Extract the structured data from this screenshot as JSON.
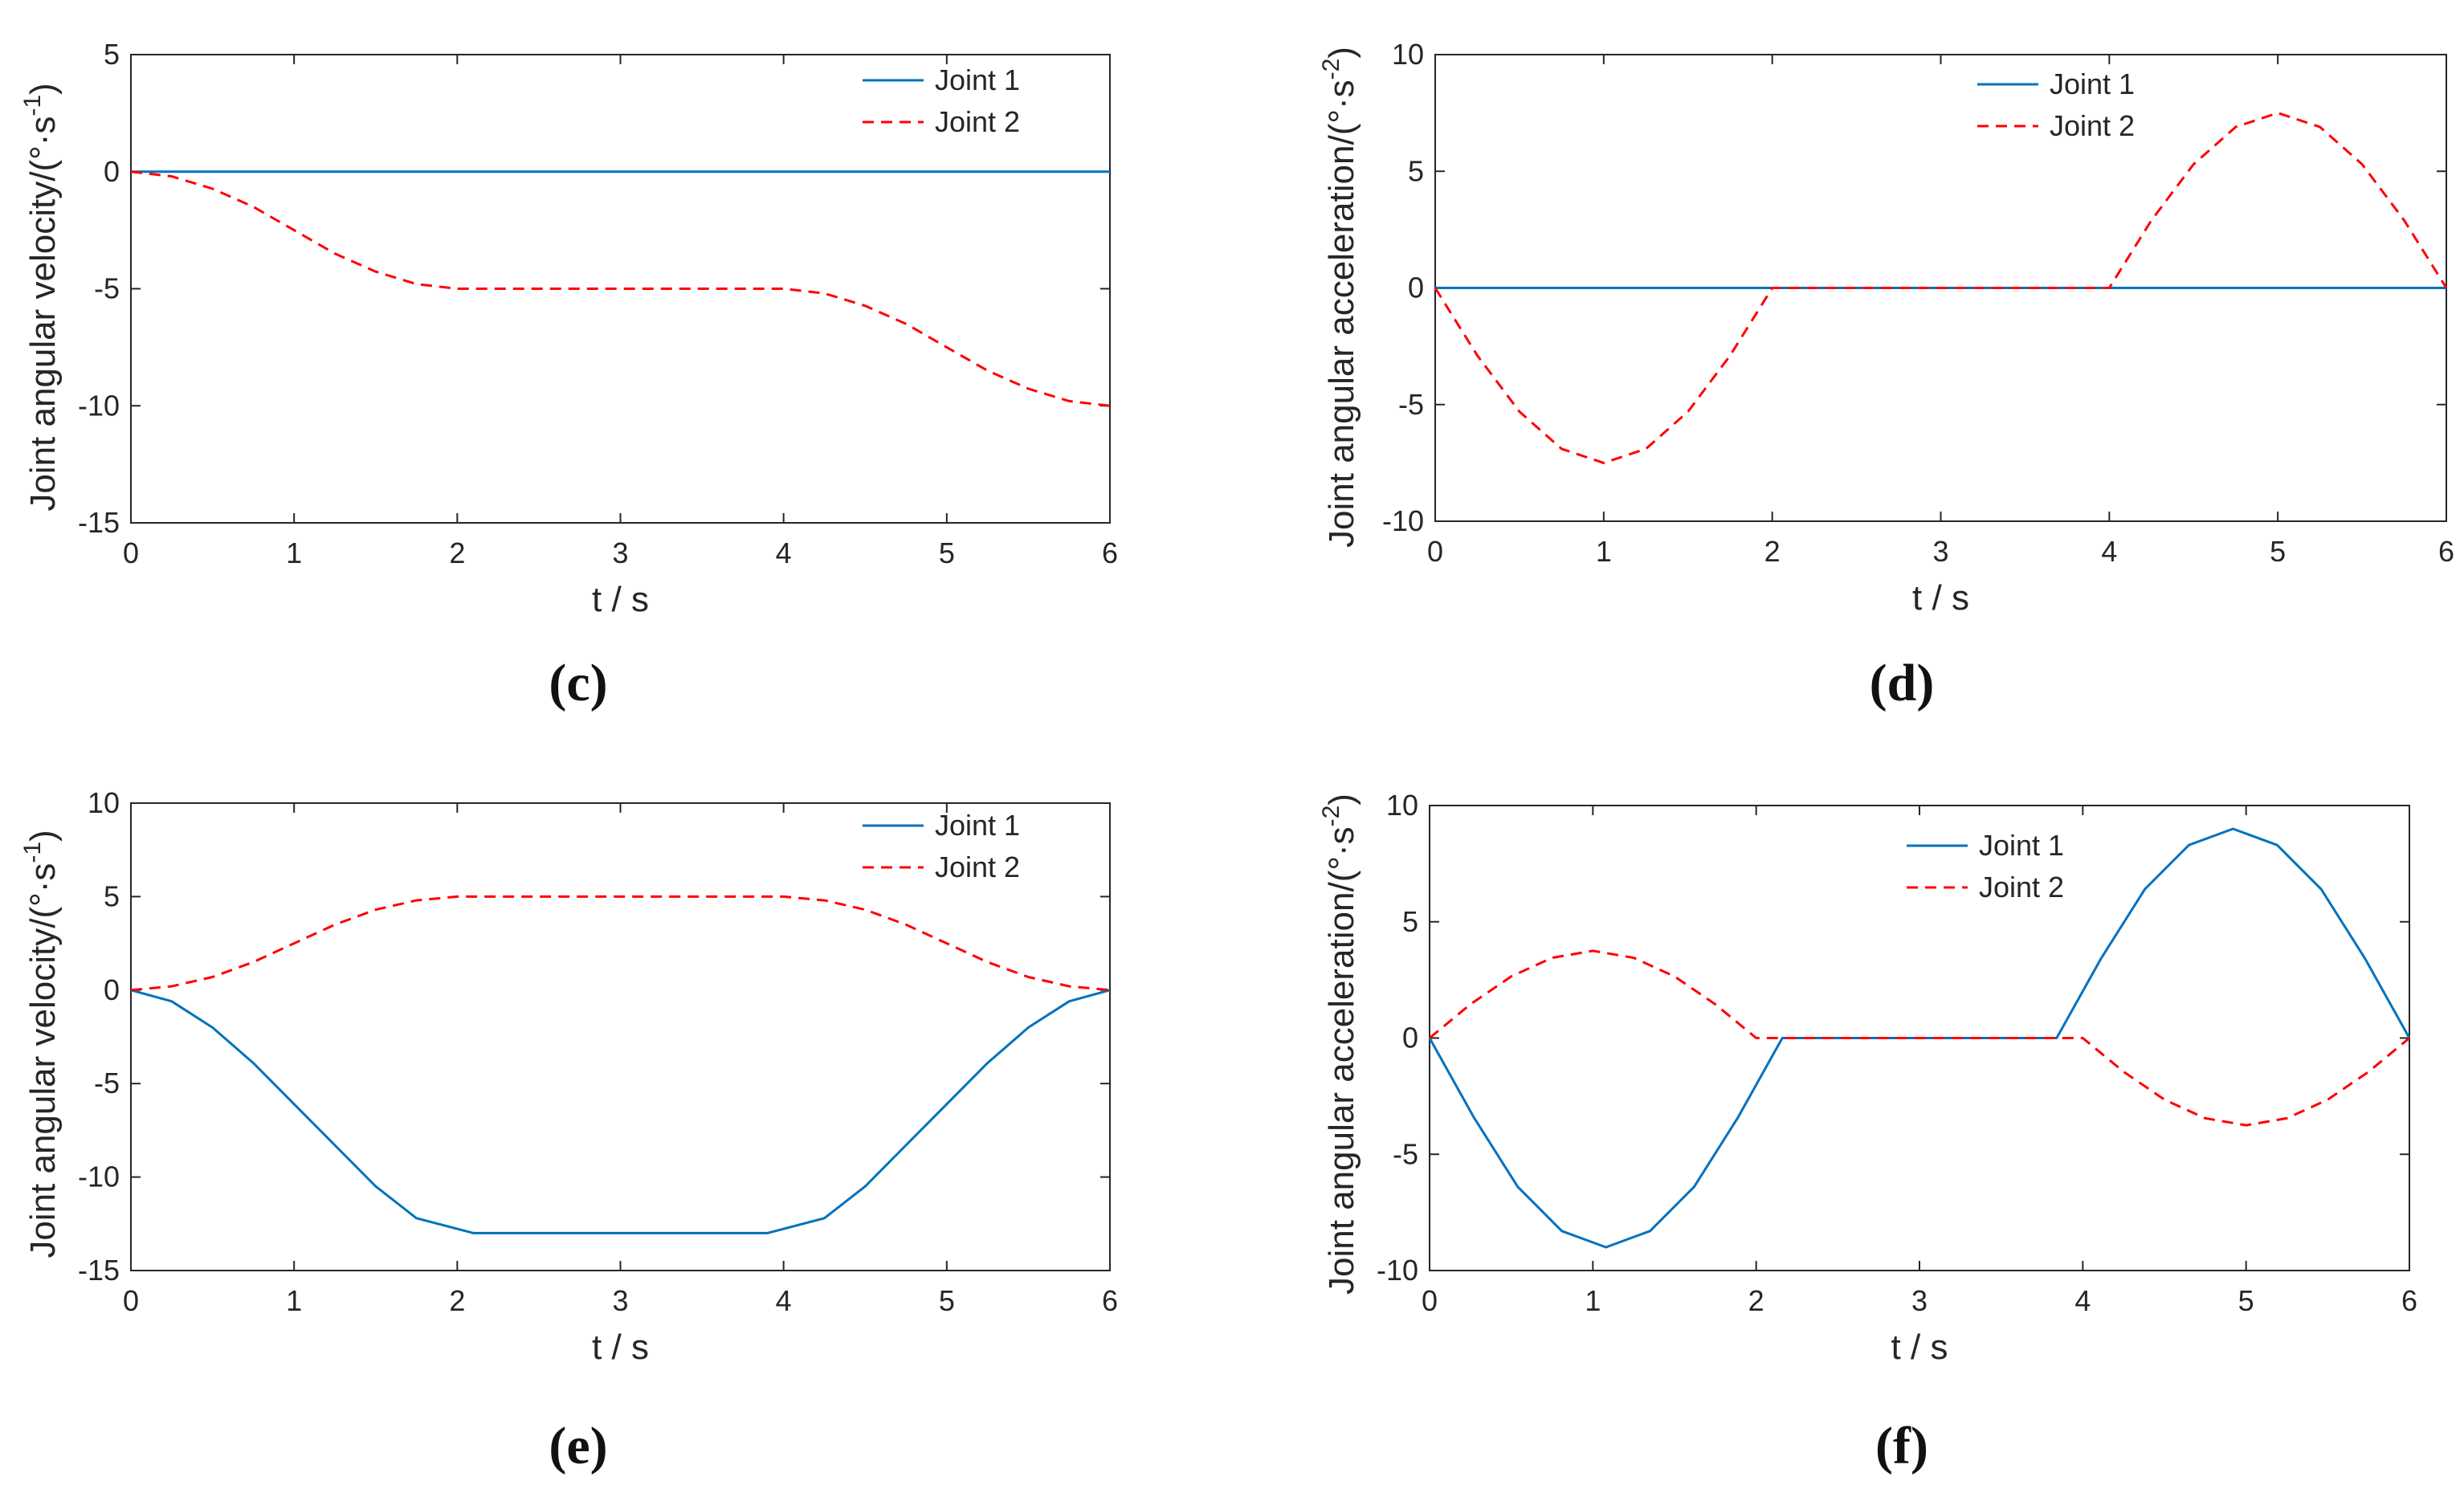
{
  "chart_data": [
    {
      "id": "c",
      "type": "line",
      "panel_label": "(c)",
      "xlabel": "t / s",
      "ylabel": "Joint angular velocity/(°·s",
      "ylabel_sup": "-1",
      "ylabel_close": ")",
      "xlim": [
        0,
        6
      ],
      "ylim": [
        -15,
        5
      ],
      "xticks": [
        0,
        1,
        2,
        3,
        4,
        5,
        6
      ],
      "yticks": [
        5,
        0,
        -5,
        -10,
        -15
      ],
      "legend_position": "top-right",
      "series": [
        {
          "name": "Joint 1",
          "color": "#0072BD",
          "style": "solid",
          "x": [
            0,
            6
          ],
          "y": [
            0,
            0
          ]
        },
        {
          "name": "Joint 2",
          "color": "#FF0000",
          "style": "dashed",
          "x": [
            0,
            0.25,
            0.5,
            0.75,
            1,
            1.25,
            1.5,
            1.75,
            2,
            3,
            4,
            4.25,
            4.5,
            4.75,
            5,
            5.25,
            5.5,
            5.75,
            6
          ],
          "y": [
            0,
            -0.2,
            -0.73,
            -1.5,
            -2.5,
            -3.5,
            -4.27,
            -4.8,
            -5,
            -5,
            -5,
            -5.2,
            -5.73,
            -6.5,
            -7.5,
            -8.5,
            -9.27,
            -9.8,
            -10
          ]
        }
      ]
    },
    {
      "id": "d",
      "type": "line",
      "panel_label": "(d)",
      "xlabel": "t / s",
      "ylabel": "Joint angular acceleration/(°·s",
      "ylabel_sup": "-2",
      "ylabel_close": ")",
      "xlim": [
        0,
        6
      ],
      "ylim": [
        -10,
        10
      ],
      "xticks": [
        0,
        1,
        2,
        3,
        4,
        5,
        6
      ],
      "yticks": [
        10,
        5,
        0,
        -5,
        -10
      ],
      "legend_position": "top-center",
      "series": [
        {
          "name": "Joint 1",
          "color": "#0072BD",
          "style": "solid",
          "x": [
            0,
            6
          ],
          "y": [
            0,
            0
          ]
        },
        {
          "name": "Joint 2",
          "color": "#FF0000",
          "style": "dashed",
          "x": [
            0,
            0.25,
            0.5,
            0.75,
            1,
            1.25,
            1.5,
            1.75,
            2,
            3,
            4,
            4.25,
            4.5,
            4.75,
            5,
            5.25,
            5.5,
            5.75,
            6
          ],
          "y": [
            0,
            -2.9,
            -5.3,
            -6.9,
            -7.5,
            -6.9,
            -5.3,
            -2.9,
            0,
            0,
            0,
            2.9,
            5.3,
            6.9,
            7.5,
            6.9,
            5.3,
            2.9,
            0
          ]
        }
      ]
    },
    {
      "id": "e",
      "type": "line",
      "panel_label": "(e)",
      "xlabel": "t / s",
      "ylabel": "Joint angular velocity/(°·s",
      "ylabel_sup": "-1",
      "ylabel_close": ")",
      "xlim": [
        0,
        6
      ],
      "ylim": [
        -15,
        10
      ],
      "xticks": [
        0,
        1,
        2,
        3,
        4,
        5,
        6
      ],
      "yticks": [
        10,
        5,
        0,
        -5,
        -10,
        -15
      ],
      "legend_position": "top-right",
      "series": [
        {
          "name": "Joint 1",
          "color": "#0072BD",
          "style": "solid",
          "x": [
            0,
            0.25,
            0.5,
            0.75,
            1,
            1.25,
            1.5,
            1.75,
            2.1,
            3,
            3.9,
            4.25,
            4.5,
            4.75,
            5,
            5.25,
            5.5,
            5.75,
            6
          ],
          "y": [
            0,
            -0.6,
            -2,
            -3.9,
            -6.1,
            -8.3,
            -10.5,
            -12.2,
            -13,
            -13,
            -13,
            -12.2,
            -10.5,
            -8.3,
            -6.1,
            -3.9,
            -2,
            -0.6,
            0
          ]
        },
        {
          "name": "Joint 2",
          "color": "#FF0000",
          "style": "dashed",
          "x": [
            0,
            0.25,
            0.5,
            0.75,
            1,
            1.25,
            1.5,
            1.75,
            2,
            3,
            4,
            4.25,
            4.5,
            4.75,
            5,
            5.25,
            5.5,
            5.75,
            6
          ],
          "y": [
            0,
            0.2,
            0.7,
            1.5,
            2.5,
            3.5,
            4.3,
            4.8,
            5,
            5,
            5,
            4.8,
            4.3,
            3.5,
            2.5,
            1.5,
            0.7,
            0.2,
            0
          ]
        }
      ]
    },
    {
      "id": "f",
      "type": "line",
      "panel_label": "(f)",
      "xlabel": "t / s",
      "ylabel": "Joint angular acceleration/(°·s",
      "ylabel_sup": "-2",
      "ylabel_close": ")",
      "xlim": [
        0,
        6
      ],
      "ylim": [
        -10,
        10
      ],
      "xticks": [
        0,
        1,
        2,
        3,
        4,
        5,
        6
      ],
      "yticks": [
        10,
        5,
        0,
        -5,
        -10
      ],
      "legend_position": "top-center",
      "series": [
        {
          "name": "Joint 1",
          "color": "#0072BD",
          "style": "solid",
          "x": [
            0,
            0.27,
            0.54,
            0.81,
            1.08,
            1.35,
            1.62,
            1.89,
            2.16,
            3,
            3.84,
            4.11,
            4.38,
            4.65,
            4.92,
            5.19,
            5.46,
            5.73,
            6
          ],
          "y": [
            0,
            -3.4,
            -6.4,
            -8.3,
            -9,
            -8.3,
            -6.4,
            -3.4,
            0,
            0,
            0,
            3.4,
            6.4,
            8.3,
            9,
            8.3,
            6.4,
            3.4,
            0
          ]
        },
        {
          "name": "Joint 2",
          "color": "#FF0000",
          "style": "dashed",
          "x": [
            0,
            0.25,
            0.5,
            0.75,
            1,
            1.25,
            1.5,
            1.75,
            2,
            3,
            4,
            4.25,
            4.5,
            4.75,
            5,
            5.25,
            5.5,
            5.75,
            6
          ],
          "y": [
            0,
            1.45,
            2.65,
            3.45,
            3.75,
            3.45,
            2.65,
            1.45,
            0,
            0,
            0,
            -1.45,
            -2.65,
            -3.45,
            -3.75,
            -3.45,
            -2.65,
            -1.45,
            0
          ]
        }
      ]
    }
  ]
}
